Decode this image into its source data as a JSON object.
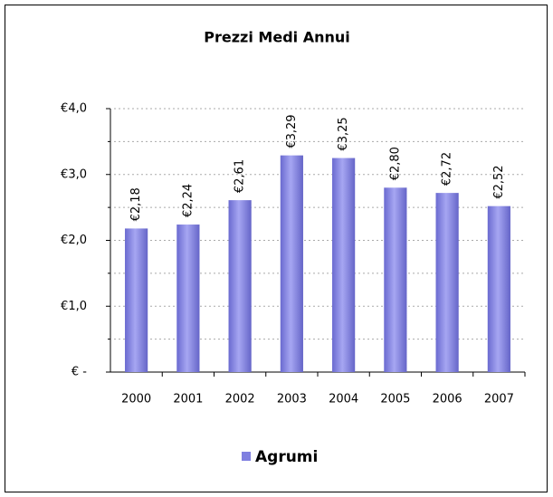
{
  "chart_data": {
    "type": "bar",
    "title": "Prezzi Medi Annui",
    "categories": [
      "2000",
      "2001",
      "2002",
      "2003",
      "2004",
      "2005",
      "2006",
      "2007"
    ],
    "series": [
      {
        "name": "Agrumi",
        "color": "#7f7fe0",
        "values": [
          2.18,
          2.24,
          2.61,
          3.29,
          3.25,
          2.8,
          2.72,
          2.52
        ],
        "value_labels": [
          "€2,18",
          "€2,24",
          "€2,61",
          "€3,29",
          "€3,25",
          "€2,80",
          "€2,72",
          "€2,52"
        ]
      }
    ],
    "ylim": [
      0,
      4
    ],
    "yticks": [
      {
        "value": 0,
        "label": "€ -"
      },
      {
        "value": 1,
        "label": "€1,0"
      },
      {
        "value": 2,
        "label": "€2,0"
      },
      {
        "value": 3,
        "label": "€3,0"
      },
      {
        "value": 4,
        "label": "€4,0"
      }
    ],
    "minor_yticks": [
      0.5,
      1.5,
      2.5,
      3.5
    ],
    "grid": true,
    "legend": "bottom"
  }
}
